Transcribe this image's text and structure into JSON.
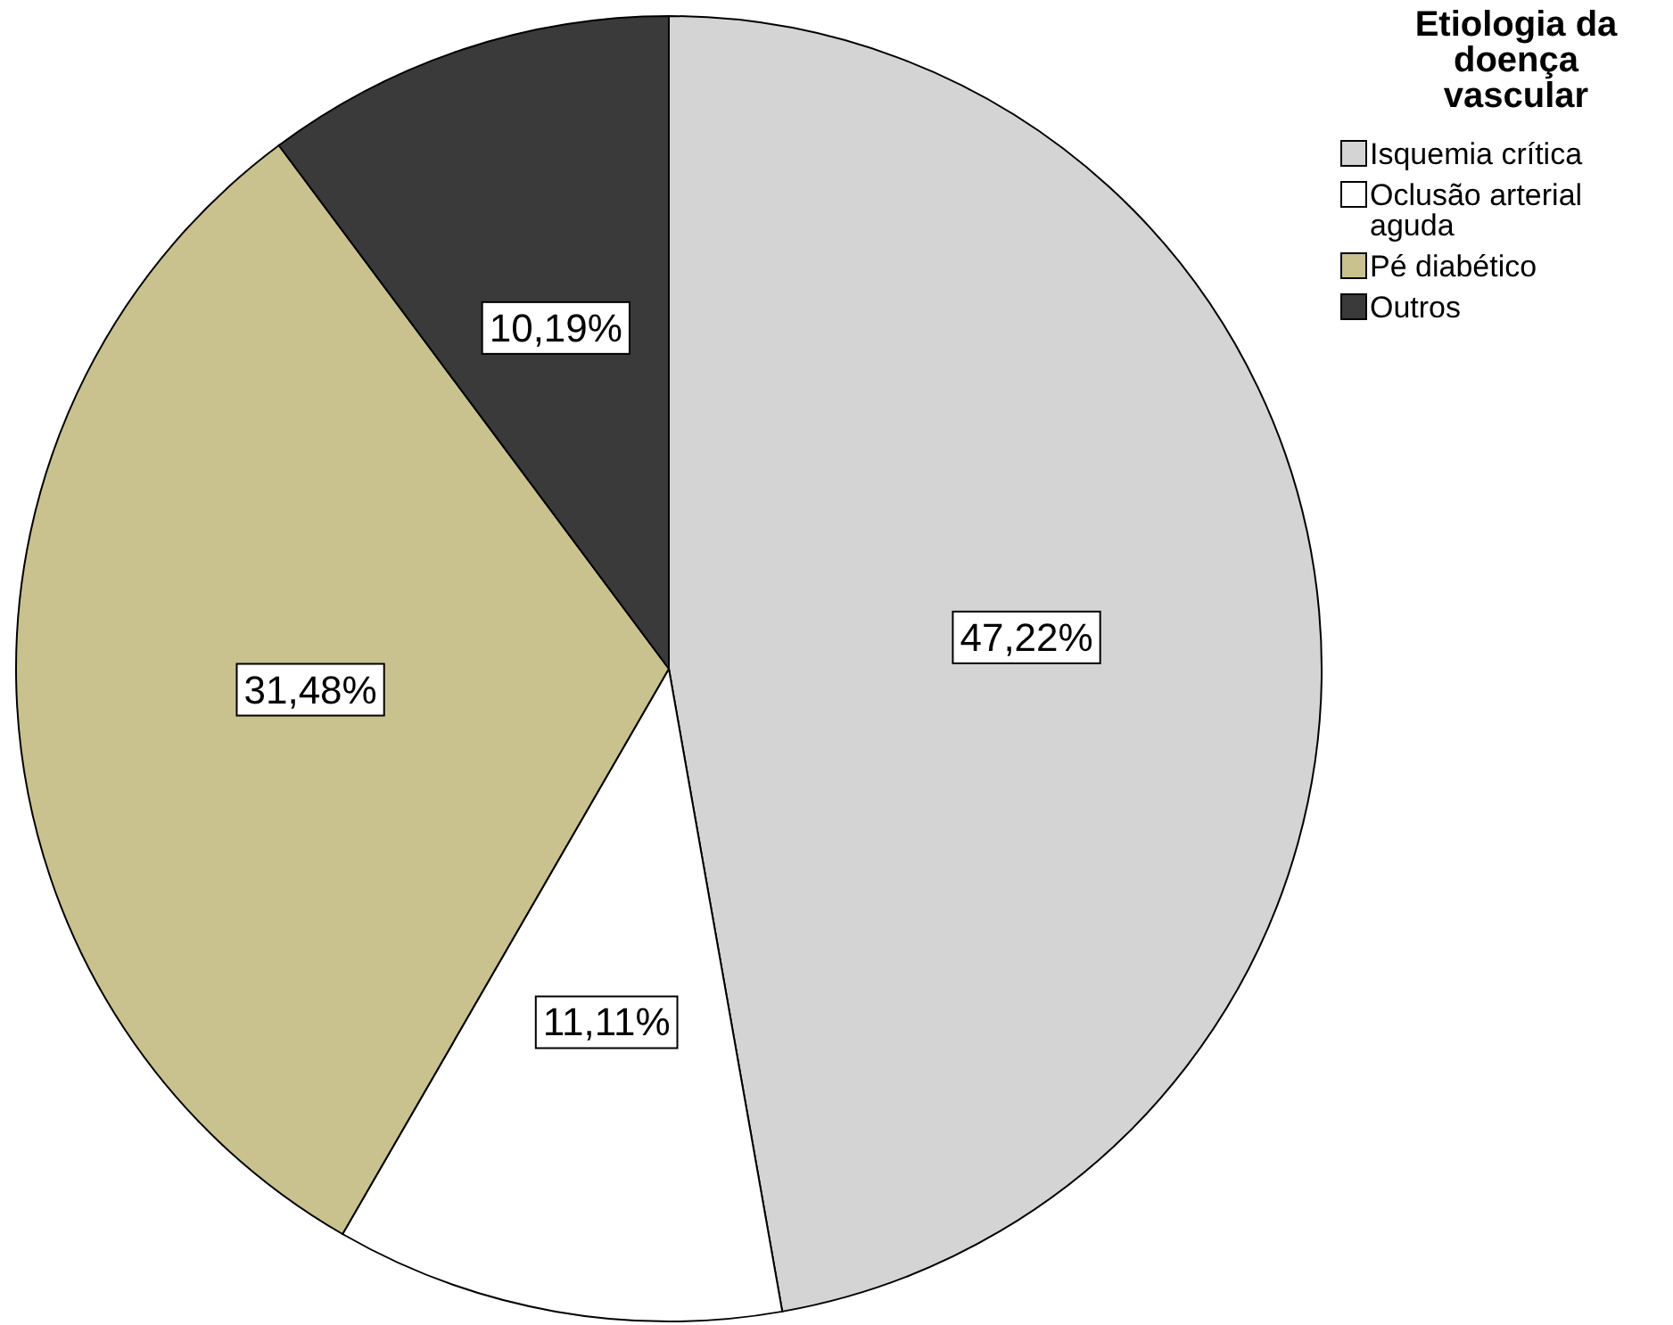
{
  "chart_data": {
    "type": "pie",
    "legend_title": "Etiologia da doença vascular",
    "categories": [
      "Isquemia crítica",
      "Oclusão arterial aguda",
      "Pé diabético",
      "Outros"
    ],
    "values": [
      47.22,
      11.11,
      31.48,
      10.19
    ],
    "value_labels": [
      "47,22%",
      "11,11%",
      "31,48%",
      "10,19%"
    ],
    "colors": [
      "#d4d4d4",
      "#ffffff",
      "#c9c28e",
      "#3a3a3a"
    ],
    "legend": "top right"
  }
}
